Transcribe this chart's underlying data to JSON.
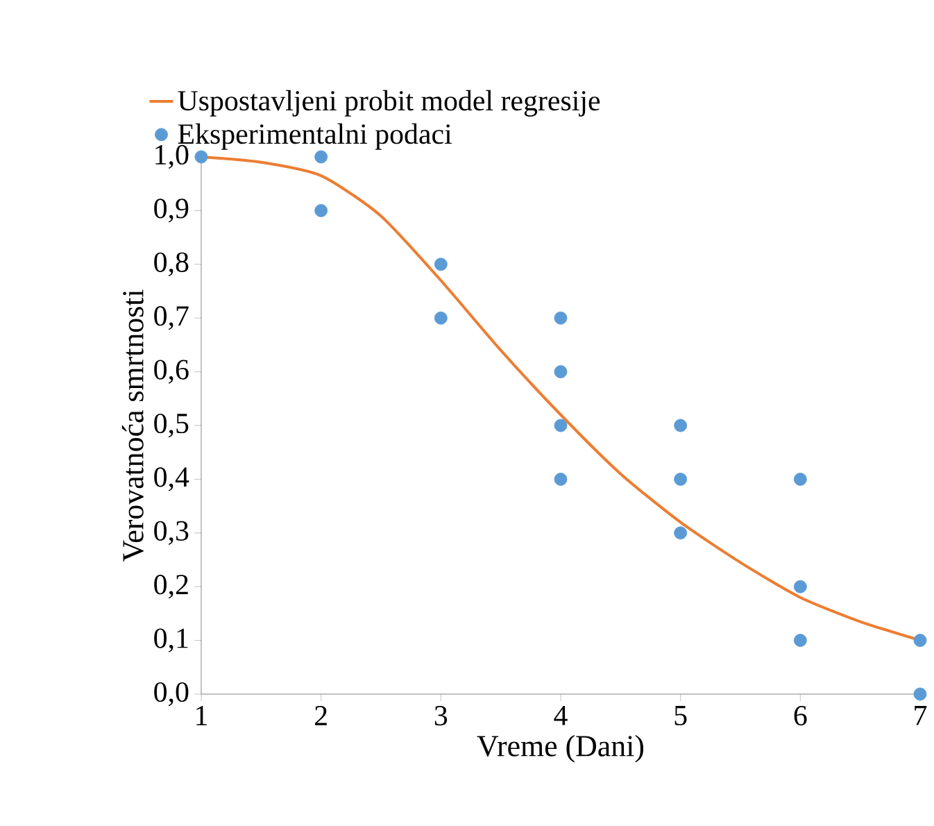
{
  "chart_data": {
    "type": "scatter",
    "xlabel": "Vreme (Dani)",
    "ylabel": "Verovatnoća smrtnosti",
    "legend": "top",
    "series": [
      {
        "name": "Uspostavljeni probit model regresije",
        "type": "line",
        "marker": "none",
        "color": "#ed7d31",
        "x": [
          1,
          1.5,
          2,
          2.5,
          3,
          3.5,
          4,
          4.5,
          5,
          5.5,
          6,
          6.5,
          7
        ],
        "values": [
          1.0,
          0.99,
          0.965,
          0.89,
          0.77,
          0.64,
          0.52,
          0.41,
          0.32,
          0.245,
          0.18,
          0.135,
          0.1
        ]
      },
      {
        "name": "Eksperimentalni podaci",
        "marker": "circle",
        "color": "#5b9bd5",
        "x": [
          1,
          2,
          2,
          3,
          3,
          4,
          4,
          4,
          4,
          5,
          5,
          5,
          6,
          6,
          6,
          7,
          7
        ],
        "values": [
          1.0,
          1.0,
          0.9,
          0.8,
          0.7,
          0.7,
          0.6,
          0.5,
          0.4,
          0.5,
          0.4,
          0.3,
          0.4,
          0.2,
          0.1,
          0.1,
          0.0
        ]
      }
    ],
    "xlim": [
      1,
      7
    ],
    "xticks": [
      1,
      2,
      3,
      4,
      5,
      6,
      7
    ],
    "ylim": [
      0,
      1
    ],
    "yticks": [
      {
        "value": 0,
        "label": "0,0"
      },
      {
        "value": 0.1,
        "label": "0,1"
      },
      {
        "value": 0.2,
        "label": "0,2"
      },
      {
        "value": 0.3,
        "label": "0,3"
      },
      {
        "value": 0.4,
        "label": "0,4"
      },
      {
        "value": 0.5,
        "label": "0,5"
      },
      {
        "value": 0.6,
        "label": "0,6"
      },
      {
        "value": 0.7,
        "label": "0,7"
      },
      {
        "value": 0.8,
        "label": "0,8"
      },
      {
        "value": 0.9,
        "label": "0,9"
      },
      {
        "value": 1.0,
        "label": "1,0"
      }
    ]
  }
}
